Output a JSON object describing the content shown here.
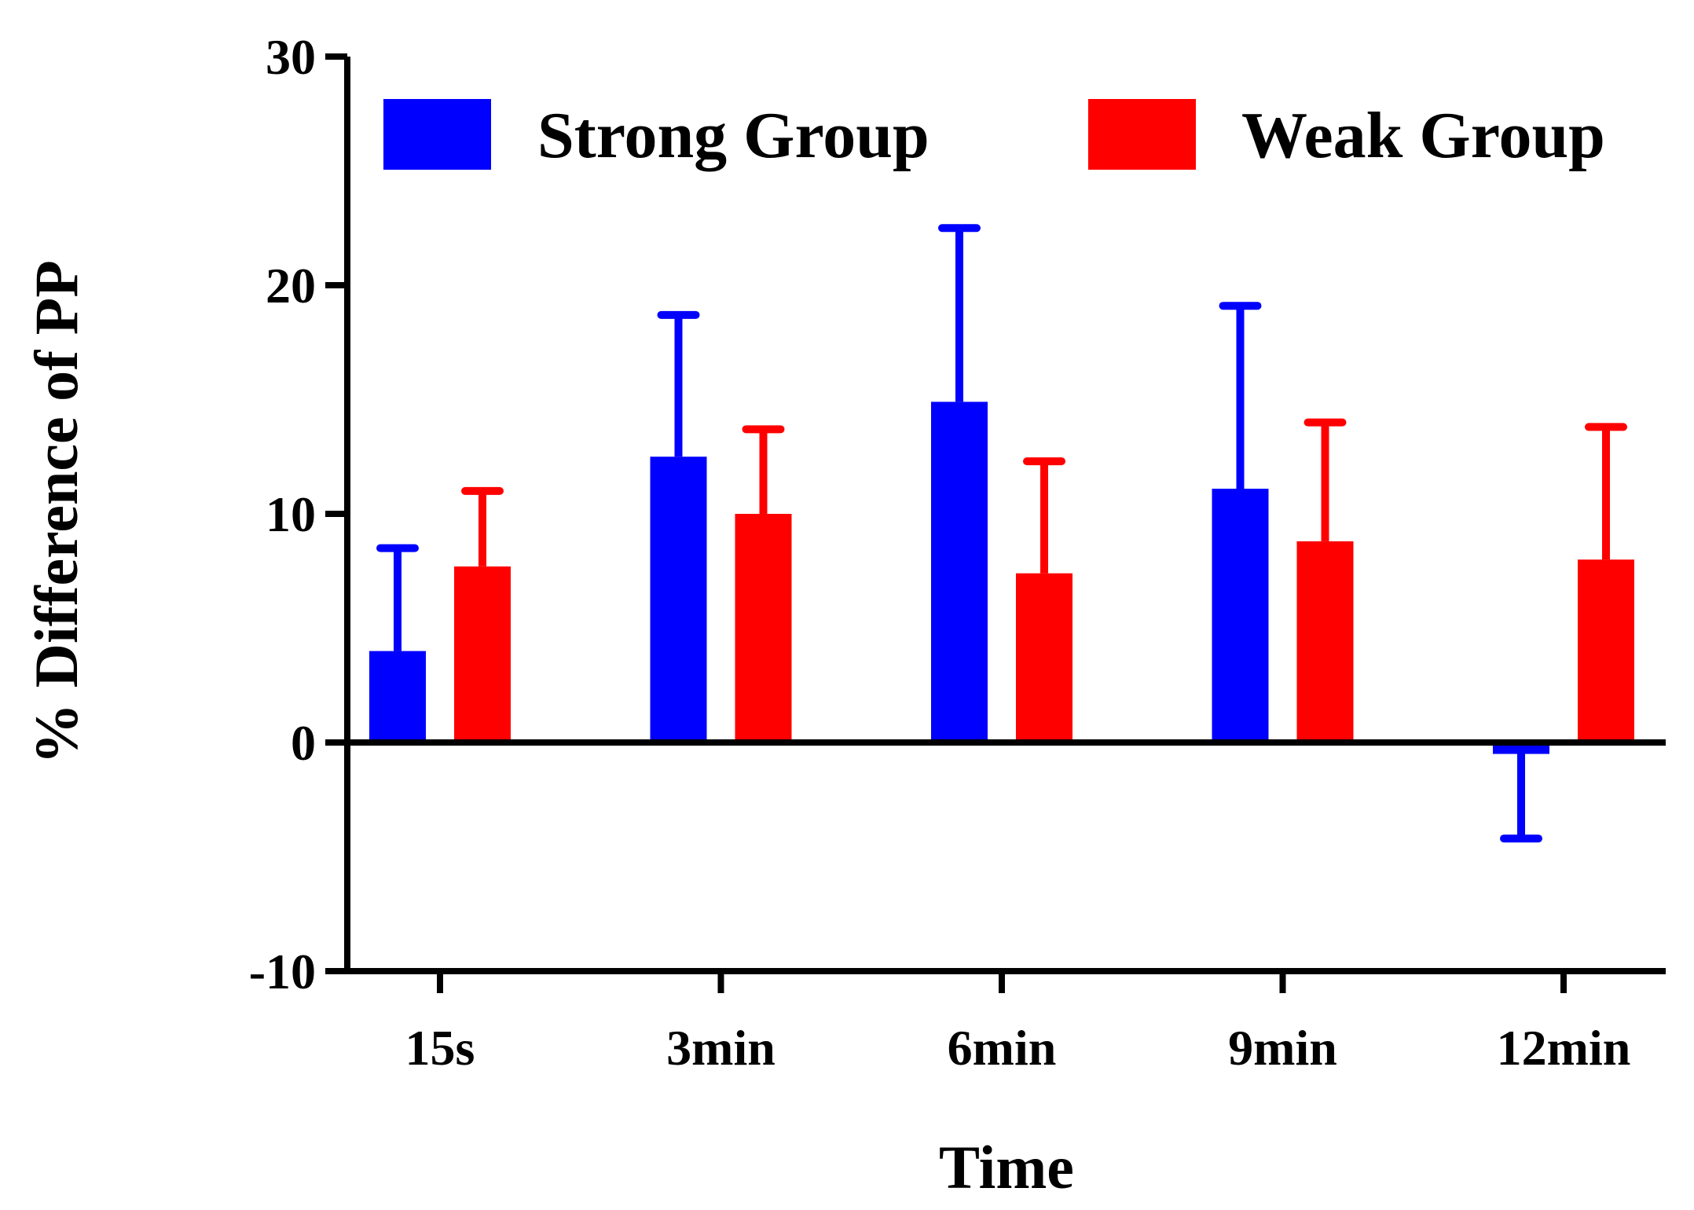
{
  "chart_data": {
    "type": "bar",
    "categories": [
      "15s",
      "3min",
      "6min",
      "9min",
      "12min"
    ],
    "series": [
      {
        "name": "Strong Group",
        "color": "#0000ff",
        "values": [
          4.0,
          12.5,
          14.9,
          11.1,
          -0.5
        ],
        "error": [
          4.5,
          6.2,
          7.6,
          8.0,
          3.7
        ],
        "error_direction": [
          "up",
          "up",
          "up",
          "up",
          "down"
        ]
      },
      {
        "name": "Weak Group",
        "color": "#ff0000",
        "values": [
          7.7,
          10.0,
          7.4,
          8.8,
          8.0
        ],
        "error": [
          3.3,
          3.7,
          4.9,
          5.2,
          5.8
        ],
        "error_direction": [
          "up",
          "up",
          "up",
          "up",
          "up"
        ]
      }
    ],
    "xlabel": "Time",
    "ylabel": "% Difference of PP",
    "ylim": [
      -10,
      30
    ],
    "yticks": [
      -10,
      0,
      10,
      20,
      30
    ],
    "legend_position": "top",
    "grid": false
  }
}
